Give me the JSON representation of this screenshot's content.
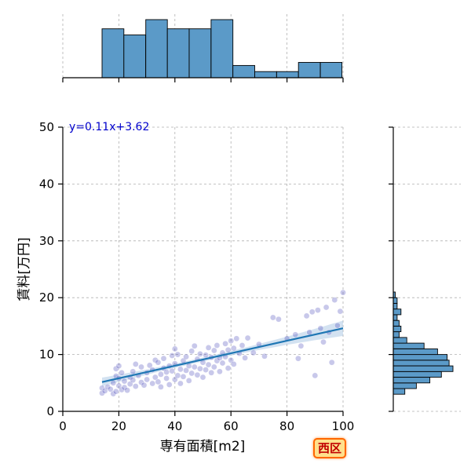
{
  "chart_data": {
    "type": "scatter",
    "xlabel": "専有面積[m2]",
    "ylabel": "賃料[万円]",
    "xlim": [
      0,
      100
    ],
    "ylim": [
      0,
      50
    ],
    "xticks": [
      0,
      20,
      40,
      60,
      80,
      100
    ],
    "yticks": [
      0,
      10,
      20,
      30,
      40,
      50
    ],
    "grid": true,
    "equation": "y=0.11x+3.62",
    "regression": {
      "slope": 0.11,
      "intercept": 3.62,
      "x_range": [
        14,
        100
      ]
    },
    "badge": "西区",
    "colors": {
      "points": "#3a3ab5",
      "regression": "#1f77b4",
      "band": "#aecbe6",
      "hist": "#5b9ac8",
      "equation": "#0000cc"
    },
    "points": [
      [
        14,
        3.2
      ],
      [
        14,
        4.1
      ],
      [
        15,
        3.6
      ],
      [
        16,
        4.3
      ],
      [
        17,
        3.9
      ],
      [
        18,
        3.1
      ],
      [
        18,
        5.0
      ],
      [
        19,
        3.5
      ],
      [
        19,
        6.2
      ],
      [
        19,
        7.5
      ],
      [
        20,
        4.5
      ],
      [
        20,
        5.8
      ],
      [
        20,
        8.0
      ],
      [
        21,
        3.8
      ],
      [
        21,
        6.8
      ],
      [
        22,
        4.2
      ],
      [
        22,
        5.3
      ],
      [
        23,
        3.7
      ],
      [
        24,
        6.0
      ],
      [
        24,
        4.8
      ],
      [
        25,
        5.5
      ],
      [
        25,
        7.0
      ],
      [
        26,
        4.4
      ],
      [
        26,
        8.3
      ],
      [
        27,
        6.3
      ],
      [
        28,
        5.1
      ],
      [
        28,
        7.8
      ],
      [
        29,
        4.6
      ],
      [
        30,
        6.8
      ],
      [
        30,
        5.6
      ],
      [
        31,
        8.1
      ],
      [
        32,
        4.9
      ],
      [
        32,
        7.3
      ],
      [
        33,
        6.0
      ],
      [
        33,
        9.0
      ],
      [
        34,
        5.2
      ],
      [
        34,
        8.6
      ],
      [
        35,
        6.5
      ],
      [
        35,
        4.3
      ],
      [
        36,
        7.6
      ],
      [
        36,
        9.3
      ],
      [
        37,
        5.8
      ],
      [
        37,
        6.9
      ],
      [
        38,
        8.0
      ],
      [
        38,
        4.7
      ],
      [
        39,
        7.1
      ],
      [
        39,
        9.8
      ],
      [
        40,
        5.6
      ],
      [
        40,
        8.4
      ],
      [
        40,
        11.0
      ],
      [
        41,
        6.3
      ],
      [
        41,
        10.0
      ],
      [
        42,
        7.4
      ],
      [
        42,
        4.9
      ],
      [
        43,
        8.9
      ],
      [
        43,
        6.1
      ],
      [
        44,
        9.6
      ],
      [
        44,
        7.2
      ],
      [
        45,
        5.4
      ],
      [
        45,
        8.0
      ],
      [
        46,
        10.6
      ],
      [
        46,
        6.7
      ],
      [
        47,
        7.8
      ],
      [
        47,
        11.5
      ],
      [
        48,
        9.2
      ],
      [
        48,
        6.4
      ],
      [
        49,
        7.5
      ],
      [
        49,
        10.1
      ],
      [
        50,
        8.6
      ],
      [
        50,
        6.0
      ],
      [
        51,
        9.9
      ],
      [
        51,
        7.3
      ],
      [
        52,
        11.2
      ],
      [
        52,
        8.2
      ],
      [
        53,
        6.8
      ],
      [
        53,
        9.5
      ],
      [
        54,
        10.7
      ],
      [
        54,
        7.8
      ],
      [
        55,
        8.9
      ],
      [
        55,
        11.6
      ],
      [
        56,
        9.4
      ],
      [
        56,
        7.0
      ],
      [
        57,
        10.3
      ],
      [
        57,
        8.5
      ],
      [
        58,
        11.9
      ],
      [
        58,
        9.6
      ],
      [
        59,
        7.6
      ],
      [
        59,
        10.8
      ],
      [
        60,
        12.4
      ],
      [
        60,
        9.0
      ],
      [
        61,
        11.1
      ],
      [
        61,
        8.3
      ],
      [
        62,
        12.8
      ],
      [
        63,
        10.2
      ],
      [
        64,
        11.6
      ],
      [
        65,
        9.4
      ],
      [
        66,
        12.9
      ],
      [
        68,
        10.3
      ],
      [
        70,
        11.8
      ],
      [
        72,
        9.7
      ],
      [
        75,
        16.5
      ],
      [
        77,
        16.2
      ],
      [
        80,
        12.8
      ],
      [
        83,
        13.5
      ],
      [
        84,
        9.3
      ],
      [
        85,
        11.5
      ],
      [
        87,
        16.8
      ],
      [
        88,
        13.9
      ],
      [
        89,
        17.5
      ],
      [
        90,
        6.3
      ],
      [
        91,
        17.8
      ],
      [
        92,
        14.6
      ],
      [
        93,
        12.2
      ],
      [
        94,
        18.3
      ],
      [
        95,
        13.9
      ],
      [
        96,
        8.6
      ],
      [
        97,
        19.6
      ],
      [
        98,
        15.1
      ],
      [
        99,
        17.6
      ],
      [
        100,
        20.9
      ]
    ],
    "x_hist": {
      "bin_edges": [
        14,
        21.8,
        29.6,
        37.3,
        45.1,
        52.9,
        60.7,
        68.5,
        76.3,
        84.1,
        91.9,
        99.6
      ],
      "counts": [
        16,
        14,
        19,
        16,
        16,
        19,
        4,
        2,
        2,
        5,
        5
      ]
    },
    "y_hist": {
      "bin_edges": [
        3,
        4,
        5,
        6,
        7,
        8,
        9,
        10,
        11,
        12,
        13,
        14,
        15,
        16,
        17,
        18,
        19,
        20,
        21
      ],
      "counts": [
        6,
        12,
        19,
        25,
        31,
        29,
        28,
        23,
        16,
        7,
        3,
        4,
        3,
        2,
        4,
        2,
        2,
        1
      ]
    }
  }
}
